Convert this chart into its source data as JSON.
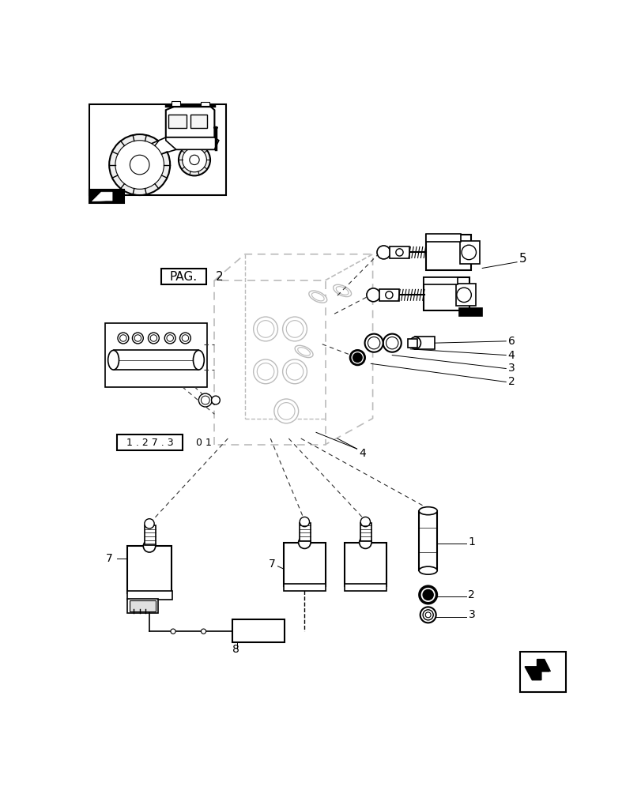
{
  "bg_color": "#ffffff",
  "line_color": "#000000",
  "light_gray": "#bbbbbb",
  "labels": {
    "PAG": "PAG.",
    "pag_num": "2",
    "ref1": "1 . 2 7 . 3",
    "ref2": "0 1",
    "num1": "1",
    "num2": "2",
    "num3": "3",
    "num4": "4",
    "num5": "5",
    "num6": "6",
    "num7": "7",
    "num8": "8"
  },
  "page_width": 8.12,
  "page_height": 10.0
}
